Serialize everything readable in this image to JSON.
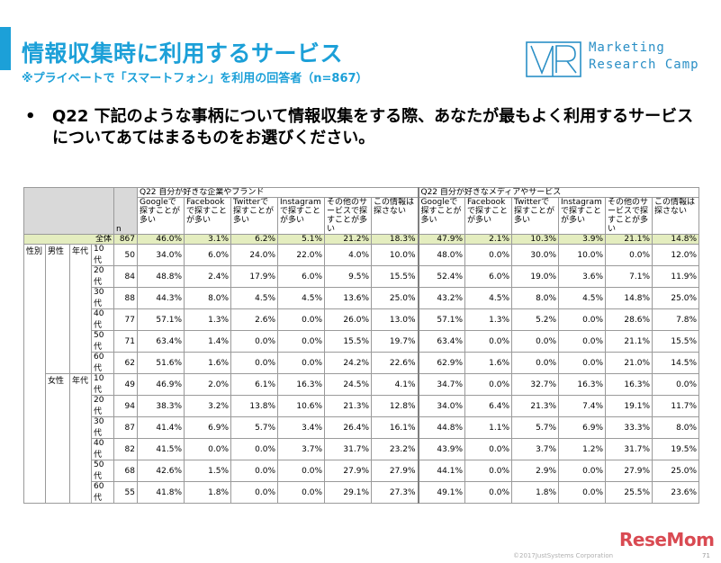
{
  "header": {
    "title": "情報収集時に利用するサービス",
    "subtitle": "※プライベートで「スマートフォン」を利用の回答者（n=867）"
  },
  "logo": {
    "mark": "VR",
    "line1": "Marketing",
    "line2": "Research Camp"
  },
  "question": {
    "bullet": "•",
    "text": "Q22 下記のような事柄について情報収集をする際、あなたが最もよく利用するサービスについてあてはまるものをお選びください。"
  },
  "table": {
    "n_label": "n",
    "groups": [
      "Q22 自分が好きな企業やブランド",
      "Q22 自分が好きなメディアやサービス"
    ],
    "columns": [
      "Googleで探すことが多い",
      "Facebookで探すことが多い",
      "Twitterで探すことが多い",
      "Instagramで探すことが多い",
      "その他のサービスで探すことが多い",
      "この情報は探さない"
    ],
    "total": {
      "label": "全体",
      "n": "867",
      "values": [
        "46.0%",
        "3.1%",
        "6.2%",
        "5.1%",
        "21.2%",
        "18.3%",
        "47.9%",
        "2.1%",
        "10.3%",
        "3.9%",
        "21.1%",
        "14.8%"
      ]
    },
    "labels": {
      "segment": "性別",
      "male": "男性",
      "female": "女性",
      "age": "年代"
    },
    "male_rows": [
      {
        "age": "10代",
        "n": "50",
        "values": [
          "34.0%",
          "6.0%",
          "24.0%",
          "22.0%",
          "4.0%",
          "10.0%",
          "48.0%",
          "0.0%",
          "30.0%",
          "10.0%",
          "0.0%",
          "12.0%"
        ]
      },
      {
        "age": "20代",
        "n": "84",
        "values": [
          "48.8%",
          "2.4%",
          "17.9%",
          "6.0%",
          "9.5%",
          "15.5%",
          "52.4%",
          "6.0%",
          "19.0%",
          "3.6%",
          "7.1%",
          "11.9%"
        ]
      },
      {
        "age": "30代",
        "n": "88",
        "values": [
          "44.3%",
          "8.0%",
          "4.5%",
          "4.5%",
          "13.6%",
          "25.0%",
          "43.2%",
          "4.5%",
          "8.0%",
          "4.5%",
          "14.8%",
          "25.0%"
        ]
      },
      {
        "age": "40代",
        "n": "77",
        "values": [
          "57.1%",
          "1.3%",
          "2.6%",
          "0.0%",
          "26.0%",
          "13.0%",
          "57.1%",
          "1.3%",
          "5.2%",
          "0.0%",
          "28.6%",
          "7.8%"
        ]
      },
      {
        "age": "50代",
        "n": "71",
        "values": [
          "63.4%",
          "1.4%",
          "0.0%",
          "0.0%",
          "15.5%",
          "19.7%",
          "63.4%",
          "0.0%",
          "0.0%",
          "0.0%",
          "21.1%",
          "15.5%"
        ]
      },
      {
        "age": "60代",
        "n": "62",
        "values": [
          "51.6%",
          "1.6%",
          "0.0%",
          "0.0%",
          "24.2%",
          "22.6%",
          "62.9%",
          "1.6%",
          "0.0%",
          "0.0%",
          "21.0%",
          "14.5%"
        ]
      }
    ],
    "female_rows": [
      {
        "age": "10代",
        "n": "49",
        "values": [
          "46.9%",
          "2.0%",
          "6.1%",
          "16.3%",
          "24.5%",
          "4.1%",
          "34.7%",
          "0.0%",
          "32.7%",
          "16.3%",
          "16.3%",
          "0.0%"
        ]
      },
      {
        "age": "20代",
        "n": "94",
        "values": [
          "38.3%",
          "3.2%",
          "13.8%",
          "10.6%",
          "21.3%",
          "12.8%",
          "34.0%",
          "6.4%",
          "21.3%",
          "7.4%",
          "19.1%",
          "11.7%"
        ]
      },
      {
        "age": "30代",
        "n": "87",
        "values": [
          "41.4%",
          "6.9%",
          "5.7%",
          "3.4%",
          "26.4%",
          "16.1%",
          "44.8%",
          "1.1%",
          "5.7%",
          "6.9%",
          "33.3%",
          "8.0%"
        ]
      },
      {
        "age": "40代",
        "n": "82",
        "values": [
          "41.5%",
          "0.0%",
          "0.0%",
          "3.7%",
          "31.7%",
          "23.2%",
          "43.9%",
          "0.0%",
          "3.7%",
          "1.2%",
          "31.7%",
          "19.5%"
        ]
      },
      {
        "age": "50代",
        "n": "68",
        "values": [
          "42.6%",
          "1.5%",
          "0.0%",
          "0.0%",
          "27.9%",
          "27.9%",
          "44.1%",
          "0.0%",
          "2.9%",
          "0.0%",
          "27.9%",
          "25.0%"
        ]
      },
      {
        "age": "60代",
        "n": "55",
        "values": [
          "41.8%",
          "1.8%",
          "0.0%",
          "0.0%",
          "29.1%",
          "27.3%",
          "49.1%",
          "0.0%",
          "1.8%",
          "0.0%",
          "25.5%",
          "23.6%"
        ]
      }
    ]
  },
  "footer": {
    "copyright": "©2017JustSystems Corporation",
    "page": "71",
    "watermark": "ReseMom"
  },
  "colors": {
    "accent": "#1ca0d8",
    "total_row": "#e4edbf",
    "gender_col": "#c9d9ef",
    "age_col": "#f0cdd8",
    "watermark": "#d94a52"
  }
}
